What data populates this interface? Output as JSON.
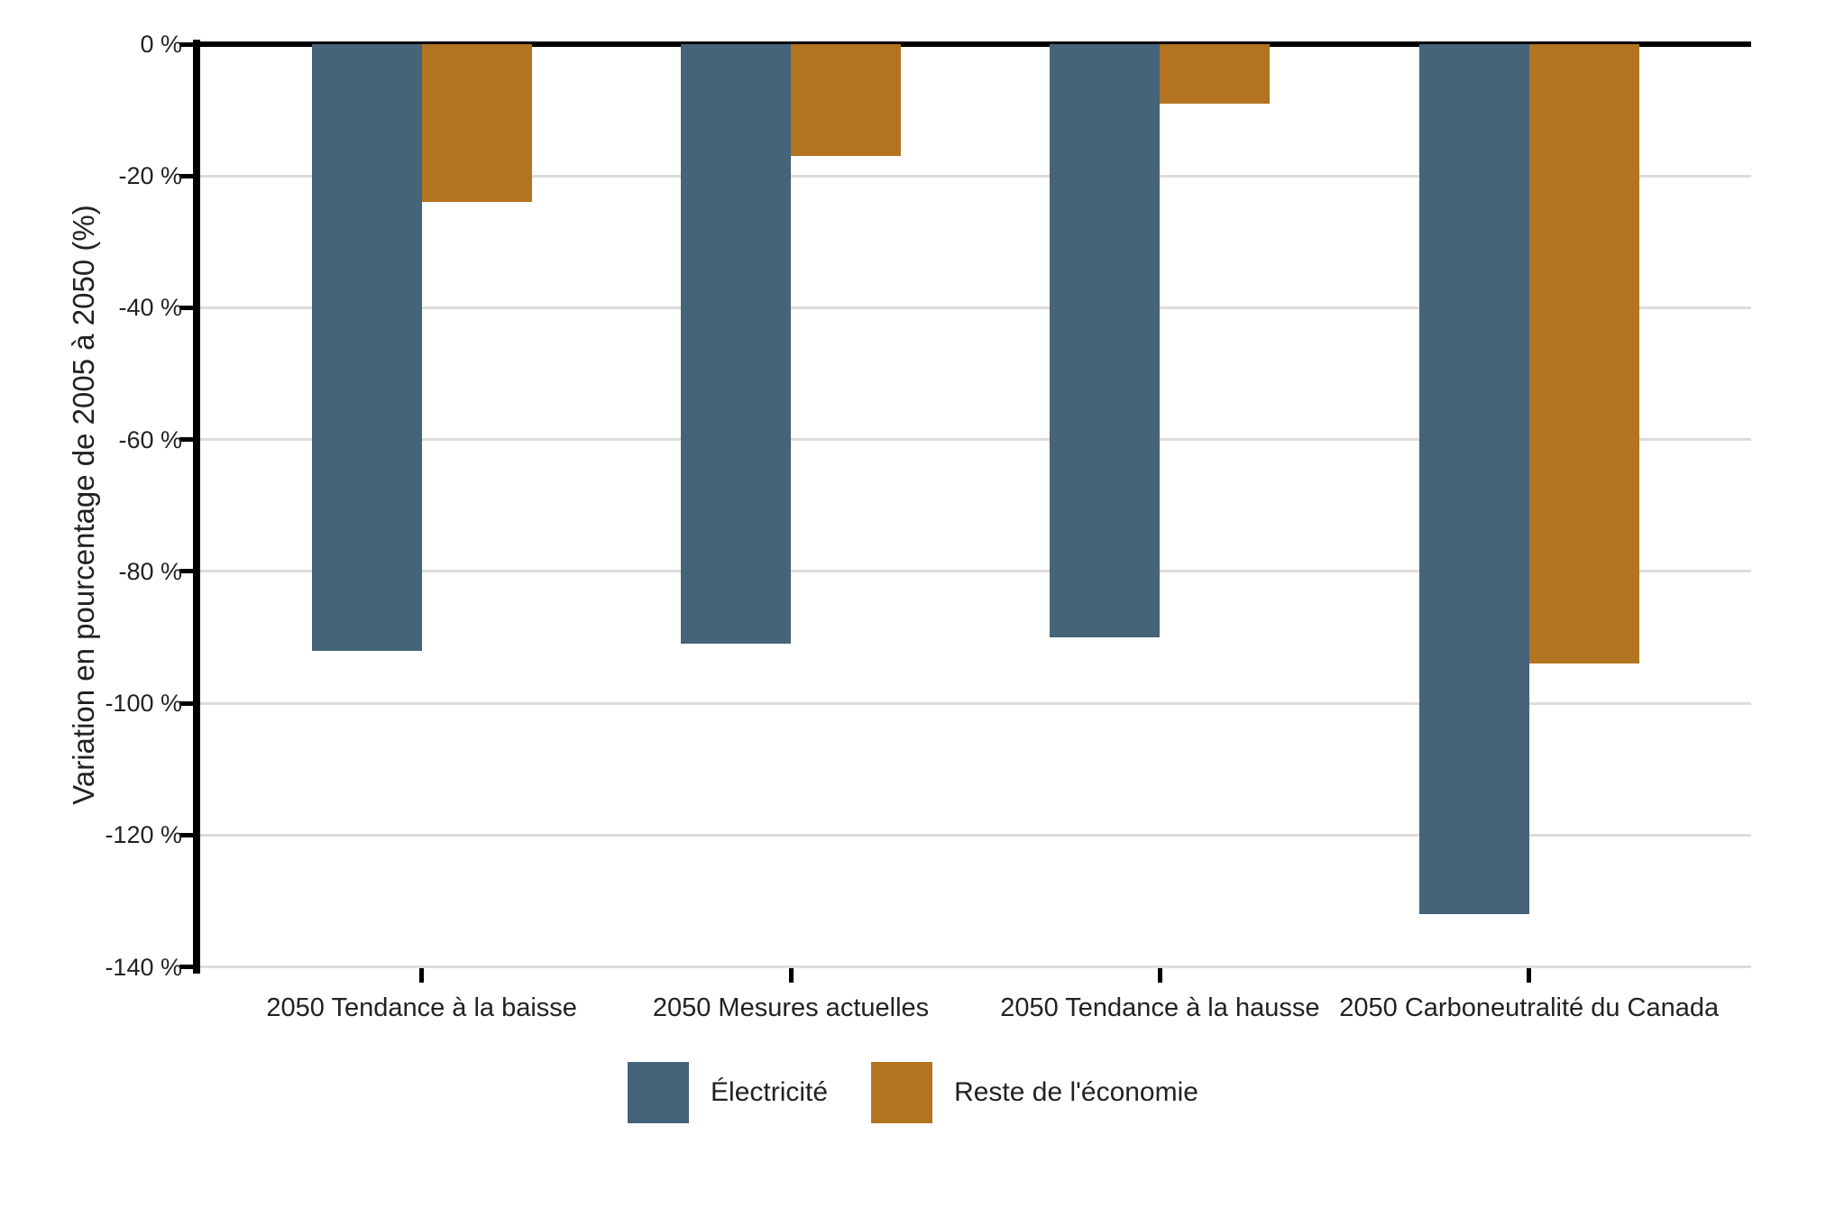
{
  "chart_data": {
    "type": "bar",
    "title": "",
    "categories": [
      "2050 Tendance à la baisse",
      "2050 Mesures actuelles",
      "2050 Tendance à la hausse",
      "2050 Carboneutralité du Canada"
    ],
    "series": [
      {
        "name": "Électricité",
        "color": "#456379",
        "values": [
          -92,
          -91,
          -90,
          -132
        ]
      },
      {
        "name": "Reste de l'économie",
        "color": "#B27420",
        "values": [
          -24,
          -17,
          -9,
          -94
        ]
      }
    ],
    "xlabel": "",
    "ylabel": "Variation en pourcentage de 2005 à 2050 (%)",
    "ylim": [
      -140,
      0
    ],
    "ytick_step": 20,
    "ytick_labels": [
      "0 %",
      "-20 %",
      "-40 %",
      "-60 %",
      "-80 %",
      "-100 %",
      "-120 %",
      "-140 %"
    ],
    "grid": "horizontal",
    "legend_position": "bottom"
  },
  "colors": {
    "axis": "#000000",
    "grid": "#DCDCDC",
    "text": "#222222",
    "background": "#FFFFFF"
  }
}
